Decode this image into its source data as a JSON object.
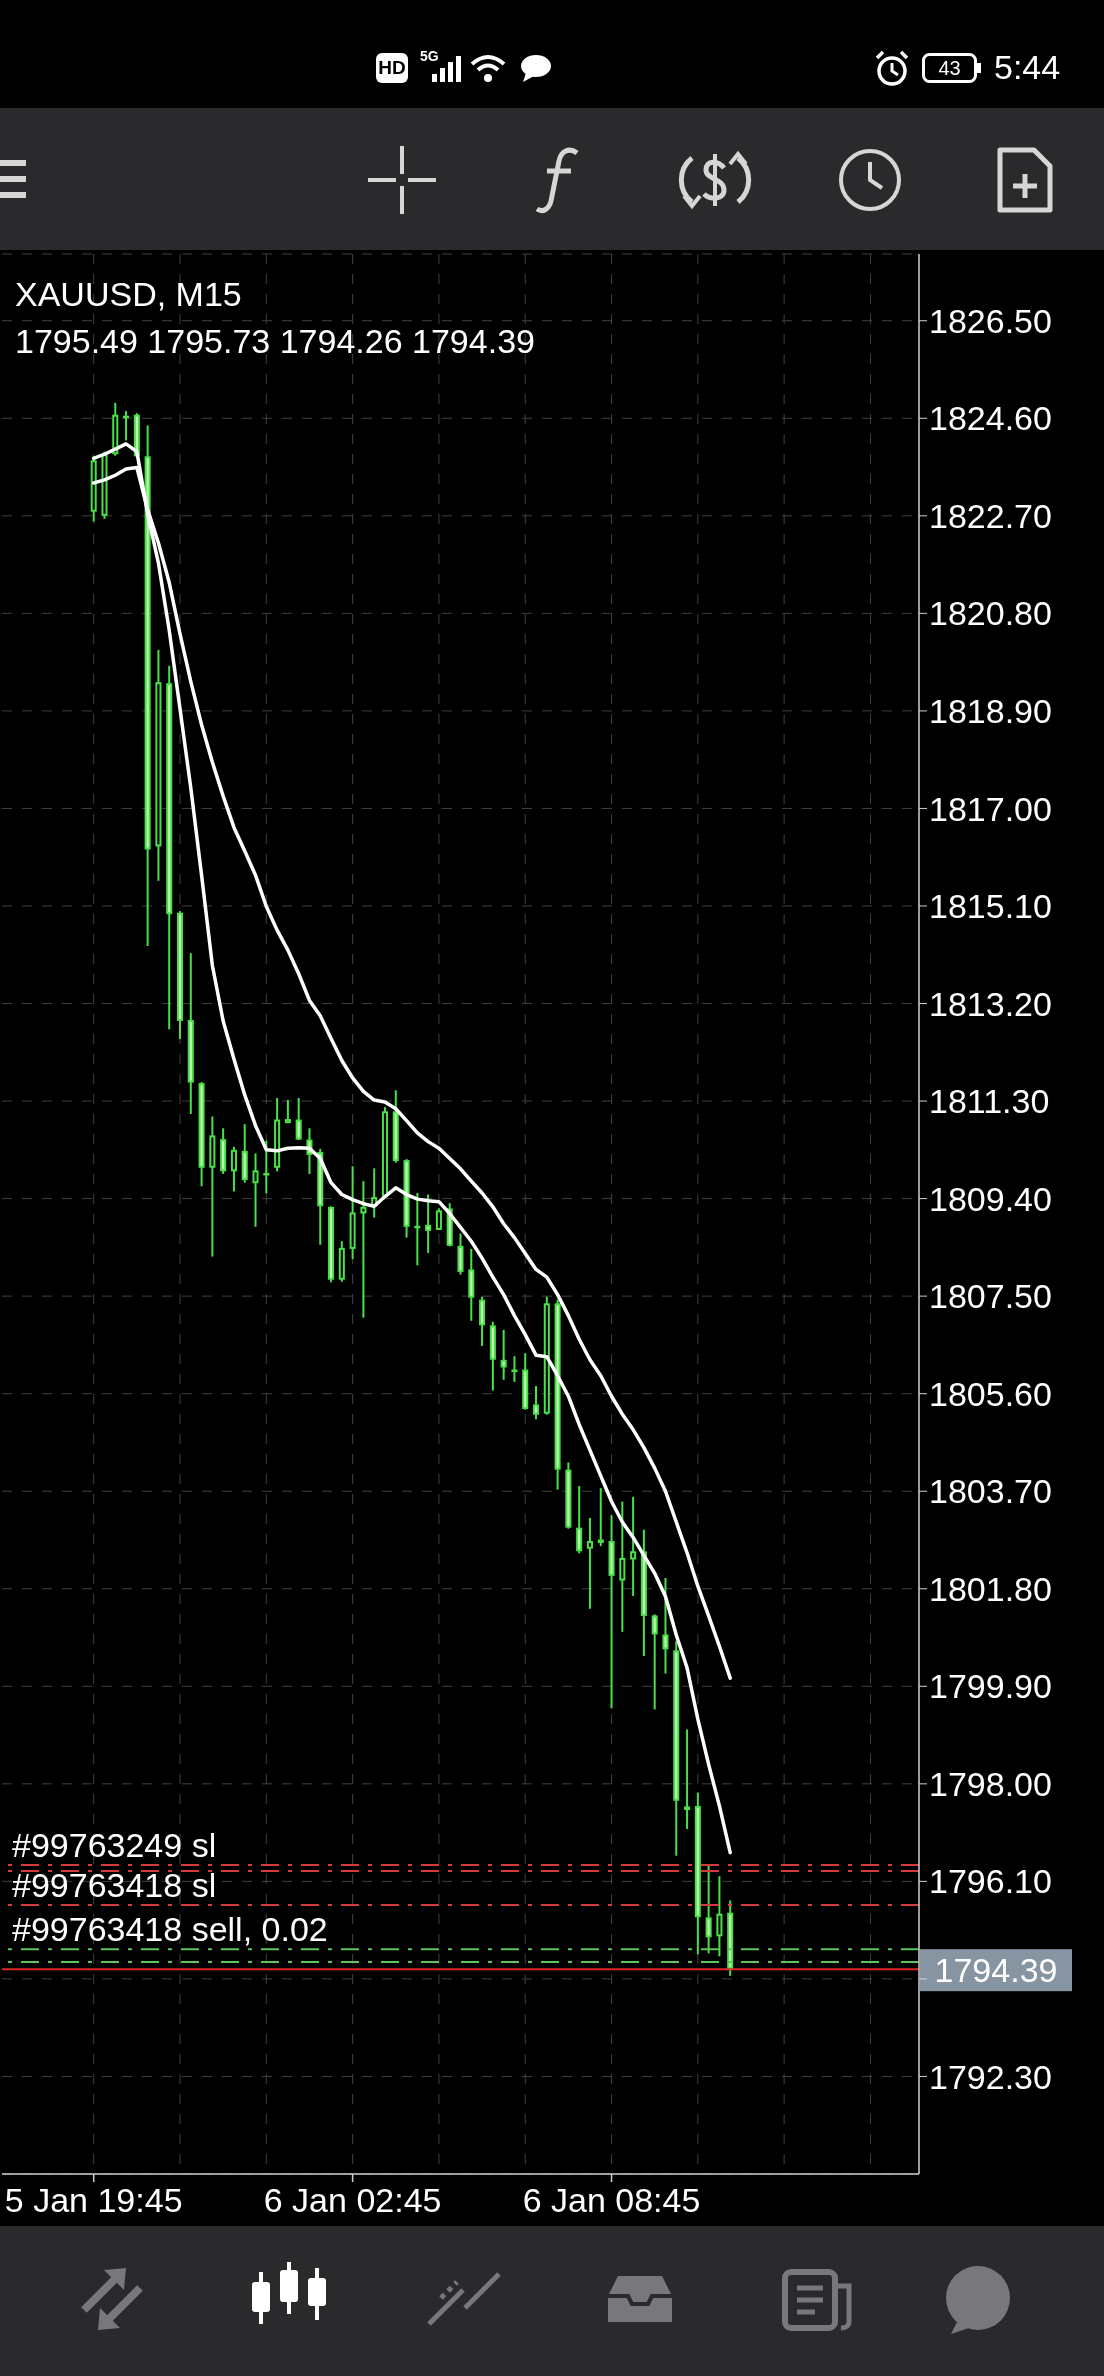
{
  "chart_data": {
    "type": "candlestick",
    "title": "XAUUSD, M15",
    "subtitle": "1795.49 1795.73 1794.26 1794.39",
    "categories": [
      "5 Jan 19:45",
      null,
      null,
      null,
      null,
      null,
      null,
      null,
      null,
      null,
      null,
      null,
      null,
      null,
      null,
      null,
      null,
      null,
      null,
      null,
      null,
      null,
      null,
      null,
      "6 Jan 02:45",
      null,
      null,
      null,
      null,
      null,
      null,
      null,
      null,
      null,
      null,
      null,
      null,
      null,
      null,
      null,
      null,
      null,
      null,
      null,
      null,
      null,
      null,
      null,
      "6 Jan 08:45",
      null,
      null,
      null,
      null,
      null,
      null,
      null,
      null,
      null,
      null,
      null,
      null,
      null,
      null,
      null,
      null,
      null,
      null,
      null,
      null,
      null,
      null,
      null,
      null,
      null,
      null,
      null,
      null
    ],
    "ohlc": [
      [
        1822.78,
        1823.86,
        1822.59,
        1823.78
      ],
      [
        1822.7,
        1823.95,
        1822.64,
        1823.9
      ],
      [
        1823.9,
        1824.9,
        1823.87,
        1824.67
      ],
      [
        1824.65,
        1824.74,
        1824.17,
        1824.62
      ],
      [
        1824.67,
        1824.7,
        1823.84,
        1823.86
      ],
      [
        1823.86,
        1824.46,
        1814.32,
        1816.2
      ],
      [
        1816.26,
        1820.09,
        1815.59,
        1819.46
      ],
      [
        1819.44,
        1819.78,
        1812.7,
        1814.94
      ],
      [
        1814.97,
        1815.0,
        1812.51,
        1812.86
      ],
      [
        1812.88,
        1814.18,
        1811.05,
        1811.66
      ],
      [
        1811.65,
        1811.67,
        1809.64,
        1810.0
      ],
      [
        1810.0,
        1811.0,
        1808.27,
        1810.63
      ],
      [
        1810.56,
        1810.77,
        1809.88,
        1809.93
      ],
      [
        1809.93,
        1810.41,
        1809.54,
        1810.35
      ],
      [
        1810.33,
        1810.85,
        1809.71,
        1809.76
      ],
      [
        1809.7,
        1810.28,
        1808.85,
        1809.95
      ],
      [
        1809.88,
        1810.53,
        1809.5,
        1809.9
      ],
      [
        1810.0,
        1811.36,
        1809.93,
        1810.94
      ],
      [
        1810.87,
        1811.32,
        1810.87,
        1810.95
      ],
      [
        1810.94,
        1811.36,
        1810.54,
        1810.55
      ],
      [
        1810.55,
        1810.77,
        1809.88,
        1810.25
      ],
      [
        1810.31,
        1810.37,
        1808.5,
        1809.25
      ],
      [
        1809.24,
        1809.25,
        1807.77,
        1807.82
      ],
      [
        1807.82,
        1808.57,
        1807.78,
        1808.44
      ],
      [
        1808.42,
        1810.03,
        1808.22,
        1809.13
      ],
      [
        1809.11,
        1809.74,
        1807.08,
        1809.24
      ],
      [
        1809.24,
        1809.99,
        1809.03,
        1809.43
      ],
      [
        1809.44,
        1811.18,
        1809.41,
        1811.1
      ],
      [
        1811.1,
        1811.51,
        1810.1,
        1810.13
      ],
      [
        1810.15,
        1810.17,
        1808.64,
        1808.85
      ],
      [
        1808.87,
        1809.51,
        1808.1,
        1808.87
      ],
      [
        1808.89,
        1809.48,
        1808.34,
        1808.77
      ],
      [
        1808.79,
        1809.21,
        1808.79,
        1809.17
      ],
      [
        1809.21,
        1809.31,
        1808.47,
        1808.48
      ],
      [
        1808.48,
        1808.72,
        1807.92,
        1807.97
      ],
      [
        1808.02,
        1808.42,
        1807.02,
        1807.47
      ],
      [
        1807.43,
        1807.49,
        1806.53,
        1806.93
      ],
      [
        1806.93,
        1807.0,
        1805.66,
        1806.26
      ],
      [
        1806.26,
        1806.84,
        1805.87,
        1806.11
      ],
      [
        1806.07,
        1806.33,
        1805.83,
        1806.07
      ],
      [
        1806.07,
        1806.39,
        1805.29,
        1805.3
      ],
      [
        1805.39,
        1805.75,
        1805.1,
        1805.19
      ],
      [
        1805.21,
        1807.49,
        1805.19,
        1807.36
      ],
      [
        1807.36,
        1807.43,
        1803.73,
        1804.12
      ],
      [
        1804.12,
        1804.26,
        1802.97,
        1802.99
      ],
      [
        1802.99,
        1803.8,
        1802.49,
        1802.53
      ],
      [
        1802.58,
        1803.18,
        1801.41,
        1802.73
      ],
      [
        1802.76,
        1803.76,
        1802.63,
        1802.69
      ],
      [
        1802.73,
        1803.23,
        1799.47,
        1802.05
      ],
      [
        1801.96,
        1803.5,
        1800.96,
        1802.4
      ],
      [
        1802.37,
        1803.59,
        1801.66,
        1802.53
      ],
      [
        1802.53,
        1802.95,
        1800.49,
        1801.27
      ],
      [
        1801.28,
        1801.3,
        1799.45,
        1800.91
      ],
      [
        1800.91,
        1802.01,
        1800.15,
        1800.62
      ],
      [
        1800.6,
        1800.78,
        1796.6,
        1797.67
      ],
      [
        1797.56,
        1799.06,
        1797.12,
        1797.49
      ],
      [
        1797.57,
        1797.83,
        1794.68,
        1795.4
      ],
      [
        1795.4,
        1796.42,
        1794.7,
        1795.01
      ],
      [
        1795.03,
        1796.2,
        1794.64,
        1795.47
      ],
      [
        1795.49,
        1795.73,
        1794.26,
        1794.39
      ],
      null,
      null,
      null,
      null,
      null,
      null,
      null,
      null,
      null,
      null,
      null,
      null,
      null,
      null,
      null,
      null,
      null
    ],
    "color": "#49e049",
    "colors": [
      "#000000",
      "#000000",
      "#000000",
      "#c4f5b6",
      "#c4f5b6",
      "#c4f5b6",
      "#000000",
      "#c4f5b6",
      "#c4f5b6",
      "#c4f5b6",
      "#c4f5b6",
      "#000000",
      "#c4f5b6",
      "#000000",
      "#c4f5b6",
      "#000000",
      "#000000",
      "#000000",
      "#000000",
      "#c4f5b6",
      "#c4f5b6",
      "#c4f5b6",
      "#c4f5b6",
      "#000000",
      "#000000",
      "#000000",
      "#000000",
      "#000000",
      "#c4f5b6",
      "#c4f5b6",
      "#000000",
      "#c4f5b6",
      "#000000",
      "#c4f5b6",
      "#c4f5b6",
      "#c4f5b6",
      "#c4f5b6",
      "#c4f5b6",
      "#c4f5b6",
      "#000000",
      "#c4f5b6",
      "#c4f5b6",
      "#000000",
      "#c4f5b6",
      "#c4f5b6",
      "#c4f5b6",
      "#000000",
      "#c4f5b6",
      "#c4f5b6",
      "#000000",
      "#000000",
      "#c4f5b6",
      "#c4f5b6",
      "#c4f5b6",
      "#c4f5b6",
      "#c4f5b6",
      "#c4f5b6",
      "#c4f5b6",
      "#000000",
      "#c4f5b6",
      null,
      null,
      null,
      null,
      null,
      null,
      null,
      null,
      null,
      null,
      null,
      null,
      null,
      null,
      null,
      null,
      null
    ],
    "series": [
      {
        "type": "line",
        "color": "#ffffff",
        "values": [
          1823.82,
          1823.9,
          1824.0,
          1824.1,
          1823.95,
          1822.74,
          1821.78,
          1820.47,
          1818.94,
          1817.4,
          1815.7,
          1813.94,
          1812.86,
          1812.12,
          1811.42,
          1810.82,
          1810.35,
          1810.33,
          1810.38,
          1810.39,
          1810.38,
          1810.18,
          1809.71,
          1809.48,
          1809.38,
          1809.3,
          1809.25,
          1809.44,
          1809.61,
          1809.48,
          1809.39,
          1809.36,
          1809.34,
          1809.11,
          1808.84,
          1808.57,
          1808.24,
          1807.87,
          1807.53,
          1807.12,
          1806.75,
          1806.35,
          1806.32,
          1805.95,
          1805.55,
          1805.0,
          1804.5,
          1804.0,
          1803.5,
          1803.1,
          1802.8,
          1802.45,
          1802.1,
          1801.65,
          1800.9,
          1800.26,
          1799.26,
          1798.38,
          1797.57,
          1796.66,
          null,
          null,
          null,
          null,
          null,
          null,
          null,
          null,
          null,
          null,
          null,
          null,
          null,
          null,
          null,
          null,
          null
        ]
      },
      {
        "type": "line",
        "color": "#ffffff",
        "values": [
          1823.34,
          1823.4,
          1823.49,
          1823.61,
          1823.64,
          1822.82,
          1822.17,
          1821.4,
          1820.4,
          1819.47,
          1818.63,
          1817.9,
          1817.24,
          1816.63,
          1816.17,
          1815.7,
          1815.09,
          1814.63,
          1814.24,
          1813.78,
          1813.26,
          1812.96,
          1812.52,
          1812.09,
          1811.75,
          1811.49,
          1811.32,
          1811.28,
          1811.15,
          1810.92,
          1810.68,
          1810.51,
          1810.38,
          1810.18,
          1809.98,
          1809.74,
          1809.51,
          1809.24,
          1808.91,
          1808.64,
          1808.33,
          1808.02,
          1807.87,
          1807.53,
          1807.12,
          1806.66,
          1806.26,
          1805.95,
          1805.55,
          1805.2,
          1804.9,
          1804.55,
          1804.15,
          1803.7,
          1803.1,
          1802.5,
          1801.85,
          1801.27,
          1800.68,
          1800.06,
          null,
          null,
          null,
          null,
          null,
          null,
          null,
          null,
          null,
          null,
          null,
          null,
          null,
          null,
          null,
          null,
          null
        ]
      }
    ],
    "ylim": [
      1790.4,
      1827.8
    ],
    "yticks": [
      {
        "value": 1792.3,
        "label": "1792.30"
      },
      {
        "value": 1794.2,
        "label": null
      },
      {
        "value": 1796.1,
        "label": "1796.10"
      },
      {
        "value": 1798,
        "label": "1798.00"
      },
      {
        "value": 1799.9,
        "label": "1799.90"
      },
      {
        "value": 1801.8,
        "label": "1801.80"
      },
      {
        "value": 1803.7,
        "label": "1803.70"
      },
      {
        "value": 1805.6,
        "label": "1805.60"
      },
      {
        "value": 1807.5,
        "label": "1807.50"
      },
      {
        "value": 1809.4,
        "label": "1809.40"
      },
      {
        "value": 1811.3,
        "label": "1811.30"
      },
      {
        "value": 1813.2,
        "label": "1813.20"
      },
      {
        "value": 1815.1,
        "label": "1815.10"
      },
      {
        "value": 1817,
        "label": "1817.00"
      },
      {
        "value": 1818.9,
        "label": "1818.90"
      },
      {
        "value": 1820.8,
        "label": "1820.80"
      },
      {
        "value": 1822.7,
        "label": "1822.70"
      },
      {
        "value": 1824.6,
        "label": "1824.60"
      },
      {
        "value": 1826.5,
        "label": "1826.50"
      }
    ],
    "grid": true,
    "ref_lines": [
      {
        "axis": "y",
        "value": 1796.42,
        "label": "#99763249 sl",
        "color": "#d23c3c",
        "line_style": "dashed"
      },
      {
        "axis": "y",
        "value": 1796.3,
        "color": "#d23c3c",
        "line_style": "dashed"
      },
      {
        "axis": "y",
        "value": 1795.64,
        "label": "#99763418 sl",
        "color": "#d23c3c",
        "line_style": "dashed"
      },
      {
        "axis": "y",
        "value": 1794.78,
        "label": "#99763418 sell, 0.02",
        "color": "#5cc45c",
        "line_style": "dashed"
      },
      {
        "axis": "y",
        "value": 1794.53,
        "color": "#5cc45c",
        "line_style": "dashed"
      },
      {
        "axis": "y",
        "value": 1794.39,
        "label": "1794.39",
        "color": "#e02828",
        "line_style": "solid"
      }
    ],
    "annotations": [
      "HD",
      "5G",
      "43",
      "5:44"
    ]
  }
}
